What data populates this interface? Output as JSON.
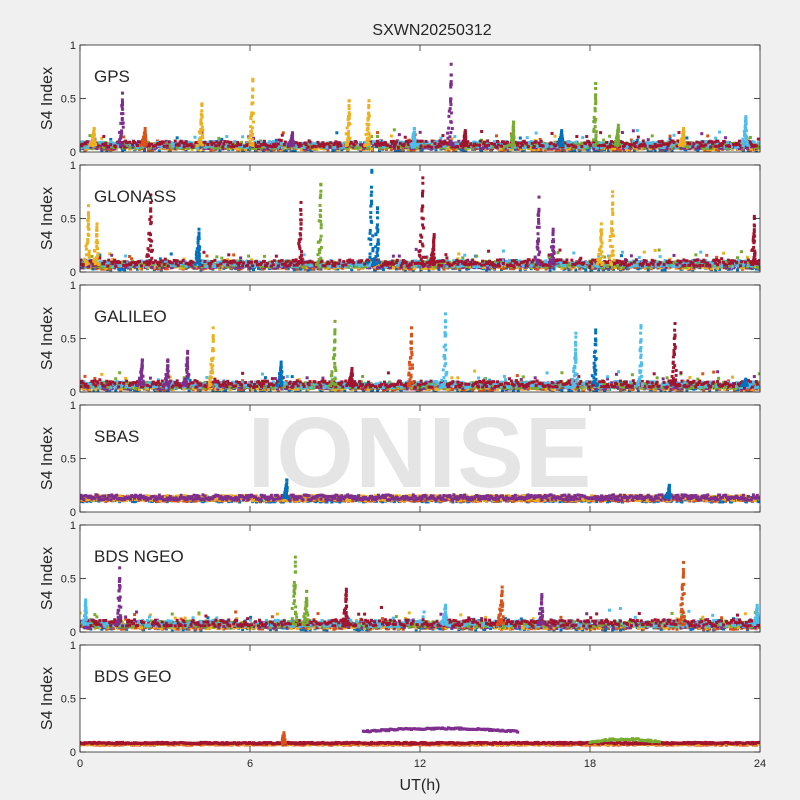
{
  "watermark": "IONISE",
  "colors": {
    "figure_bg": "#f0f0f0",
    "axes_bg": "#ffffff",
    "axis": "#262626",
    "series": [
      "#0072BD",
      "#D95319",
      "#EDB120",
      "#7E2F8E",
      "#77AC30",
      "#4DBEEE",
      "#A2142F"
    ]
  },
  "chart_data": {
    "type": "scatter",
    "title": "SXWN20250312",
    "xlabel": "UT(h)",
    "ylabel": "S4 Index",
    "xlim": [
      0,
      24
    ],
    "ylim": [
      0,
      1
    ],
    "xticks": [
      "0",
      "6",
      "12",
      "18",
      "24"
    ],
    "yticks": [
      "0",
      "0.5",
      "1"
    ],
    "grid": false,
    "legend": "none",
    "panels": [
      {
        "name": "GPS",
        "baseline": 0.06,
        "peaks": [
          {
            "x": 0.5,
            "y": 0.22,
            "c": 2
          },
          {
            "x": 1.5,
            "y": 0.55,
            "c": 3
          },
          {
            "x": 2.3,
            "y": 0.22,
            "c": 1
          },
          {
            "x": 4.3,
            "y": 0.45,
            "c": 2
          },
          {
            "x": 6.1,
            "y": 0.68,
            "c": 2
          },
          {
            "x": 7.5,
            "y": 0.18,
            "c": 3
          },
          {
            "x": 9.5,
            "y": 0.48,
            "c": 2
          },
          {
            "x": 10.2,
            "y": 0.48,
            "c": 2
          },
          {
            "x": 11.8,
            "y": 0.22,
            "c": 5
          },
          {
            "x": 13.1,
            "y": 0.82,
            "c": 3
          },
          {
            "x": 13.6,
            "y": 0.2,
            "c": 6
          },
          {
            "x": 15.3,
            "y": 0.28,
            "c": 4
          },
          {
            "x": 17.0,
            "y": 0.2,
            "c": 0
          },
          {
            "x": 18.2,
            "y": 0.64,
            "c": 4
          },
          {
            "x": 19.0,
            "y": 0.25,
            "c": 4
          },
          {
            "x": 21.3,
            "y": 0.22,
            "c": 2
          },
          {
            "x": 23.5,
            "y": 0.33,
            "c": 5
          }
        ]
      },
      {
        "name": "GLONASS",
        "baseline": 0.07,
        "peaks": [
          {
            "x": 0.3,
            "y": 0.62,
            "c": 2
          },
          {
            "x": 0.6,
            "y": 0.45,
            "c": 2
          },
          {
            "x": 2.5,
            "y": 0.72,
            "c": 6
          },
          {
            "x": 4.2,
            "y": 0.4,
            "c": 0
          },
          {
            "x": 7.8,
            "y": 0.65,
            "c": 6
          },
          {
            "x": 8.5,
            "y": 0.82,
            "c": 4
          },
          {
            "x": 10.3,
            "y": 0.95,
            "c": 0
          },
          {
            "x": 10.5,
            "y": 0.6,
            "c": 0
          },
          {
            "x": 12.1,
            "y": 0.88,
            "c": 6
          },
          {
            "x": 12.5,
            "y": 0.35,
            "c": 6
          },
          {
            "x": 16.2,
            "y": 0.7,
            "c": 3
          },
          {
            "x": 16.7,
            "y": 0.4,
            "c": 3
          },
          {
            "x": 18.4,
            "y": 0.45,
            "c": 2
          },
          {
            "x": 18.8,
            "y": 0.75,
            "c": 2
          },
          {
            "x": 23.8,
            "y": 0.52,
            "c": 6
          }
        ]
      },
      {
        "name": "GALILEO",
        "baseline": 0.06,
        "peaks": [
          {
            "x": 2.2,
            "y": 0.3,
            "c": 3
          },
          {
            "x": 3.1,
            "y": 0.3,
            "c": 3
          },
          {
            "x": 3.8,
            "y": 0.38,
            "c": 3
          },
          {
            "x": 4.7,
            "y": 0.6,
            "c": 2
          },
          {
            "x": 7.1,
            "y": 0.28,
            "c": 0
          },
          {
            "x": 9.0,
            "y": 0.66,
            "c": 4
          },
          {
            "x": 9.6,
            "y": 0.22,
            "c": 6
          },
          {
            "x": 11.7,
            "y": 0.6,
            "c": 1
          },
          {
            "x": 12.9,
            "y": 0.73,
            "c": 5
          },
          {
            "x": 17.5,
            "y": 0.55,
            "c": 5
          },
          {
            "x": 18.2,
            "y": 0.58,
            "c": 0
          },
          {
            "x": 19.8,
            "y": 0.62,
            "c": 5
          },
          {
            "x": 21.0,
            "y": 0.64,
            "c": 6
          },
          {
            "x": 23.5,
            "y": 0.12,
            "c": 0
          }
        ]
      },
      {
        "name": "SBAS",
        "baseline": 0.13,
        "peaks": [
          {
            "x": 7.3,
            "y": 0.3,
            "c": 0
          },
          {
            "x": 20.8,
            "y": 0.25,
            "c": 0
          }
        ]
      },
      {
        "name": "BDS NGEO",
        "baseline": 0.07,
        "peaks": [
          {
            "x": 0.2,
            "y": 0.3,
            "c": 5
          },
          {
            "x": 1.4,
            "y": 0.6,
            "c": 3
          },
          {
            "x": 7.6,
            "y": 0.7,
            "c": 4
          },
          {
            "x": 8.0,
            "y": 0.38,
            "c": 4
          },
          {
            "x": 9.4,
            "y": 0.4,
            "c": 6
          },
          {
            "x": 12.9,
            "y": 0.25,
            "c": 5
          },
          {
            "x": 14.9,
            "y": 0.42,
            "c": 1
          },
          {
            "x": 16.3,
            "y": 0.35,
            "c": 3
          },
          {
            "x": 21.3,
            "y": 0.65,
            "c": 1
          },
          {
            "x": 23.9,
            "y": 0.25,
            "c": 5
          }
        ]
      },
      {
        "name": "BDS GEO",
        "baseline": 0.08,
        "peaks": [
          {
            "x": 7.2,
            "y": 0.18,
            "c": 1
          }
        ],
        "arcs": [
          {
            "x0": 10.0,
            "x1": 15.5,
            "y": 0.22,
            "c": 3
          },
          {
            "x0": 18.0,
            "x1": 20.5,
            "y": 0.12,
            "c": 4
          }
        ]
      }
    ]
  }
}
